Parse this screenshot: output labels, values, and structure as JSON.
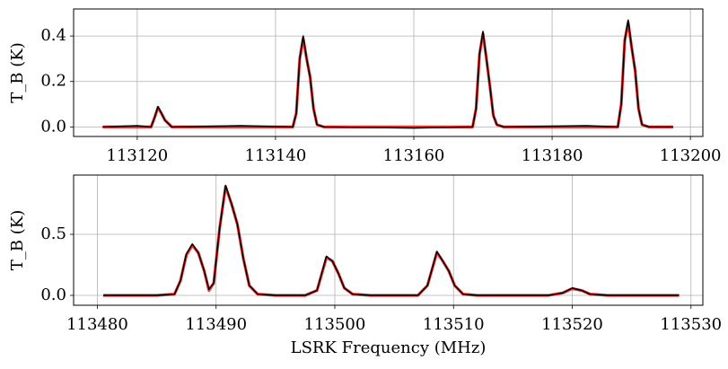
{
  "chart_data": [
    {
      "type": "line",
      "ylabel": "T_B (K)",
      "x": [
        113115,
        113120,
        113122,
        113122.5,
        113123,
        113123.5,
        113124,
        113125,
        113135,
        113142.5,
        113143,
        113143.5,
        113144,
        113144.5,
        113145,
        113145.5,
        113146,
        113147,
        113160,
        113168.5,
        113169,
        113169.5,
        113170,
        113170.5,
        113171,
        113171.5,
        113172,
        113173,
        113185,
        113189.5,
        113190,
        113190.5,
        113191,
        113191.5,
        113192,
        113192.5,
        113193,
        113194,
        113197.5
      ],
      "series": [
        {
          "color": "#ff0000",
          "values": [
            0,
            0,
            0,
            0.04,
            0.085,
            0.06,
            0.03,
            0,
            0,
            0,
            0.06,
            0.3,
            0.39,
            0.3,
            0.22,
            0.08,
            0.01,
            0,
            0,
            0,
            0.08,
            0.32,
            0.41,
            0.3,
            0.18,
            0.05,
            0.01,
            0,
            0,
            0,
            0.1,
            0.38,
            0.46,
            0.35,
            0.25,
            0.08,
            0.01,
            0,
            0
          ]
        },
        {
          "color": "#000000",
          "values": [
            0,
            0.005,
            0,
            0.04,
            0.09,
            0.06,
            0.03,
            0,
            0.005,
            0,
            0.06,
            0.3,
            0.4,
            0.3,
            0.22,
            0.08,
            0.01,
            0,
            -0.005,
            0,
            0.08,
            0.32,
            0.42,
            0.3,
            0.18,
            0.05,
            0.01,
            0,
            0.005,
            0,
            0.1,
            0.38,
            0.47,
            0.35,
            0.25,
            0.08,
            0.01,
            0,
            0
          ]
        }
      ],
      "xlim": [
        113110.8,
        113201.8
      ],
      "ylim": [
        -0.042,
        0.519
      ],
      "xticks": [
        113120,
        113140,
        113160,
        113180,
        113200
      ],
      "yticks": [
        {
          "value": 0,
          "label": "0.0"
        },
        0.2,
        0.4
      ],
      "grid": true
    },
    {
      "type": "line",
      "ylabel": "T_B (K)",
      "xlabel": "LSRK Frequency (MHz)",
      "x": [
        113480.5,
        113485,
        113486.5,
        113487,
        113487.5,
        113488,
        113488.5,
        113489,
        113489.4,
        113489.8,
        113490.3,
        113490.8,
        113491.3,
        113491.8,
        113492.3,
        113492.8,
        113493.5,
        113495,
        113497.5,
        113498.5,
        113499.3,
        113499.8,
        113500.3,
        113500.8,
        113501.5,
        113503,
        113507,
        113507.8,
        113508.6,
        113509.1,
        113509.6,
        113510.1,
        113510.8,
        113512,
        113518,
        113519.2,
        113520,
        113520.8,
        113521.5,
        113523,
        113529
      ],
      "series": [
        {
          "color": "#ff0000",
          "values": [
            0,
            0,
            0.01,
            0.12,
            0.33,
            0.41,
            0.35,
            0.2,
            0.04,
            0.1,
            0.55,
            0.89,
            0.75,
            0.58,
            0.3,
            0.08,
            0.01,
            0,
            0,
            0.04,
            0.31,
            0.28,
            0.18,
            0.06,
            0.01,
            0,
            0,
            0.08,
            0.35,
            0.28,
            0.2,
            0.08,
            0.01,
            0,
            0,
            0.02,
            0.055,
            0.04,
            0.01,
            0,
            0
          ]
        },
        {
          "color": "#000000",
          "values": [
            0,
            0,
            0.01,
            0.12,
            0.34,
            0.42,
            0.35,
            0.2,
            0.05,
            0.1,
            0.55,
            0.9,
            0.75,
            0.58,
            0.3,
            0.08,
            0.01,
            0,
            0,
            0.04,
            0.32,
            0.28,
            0.18,
            0.06,
            0.01,
            0,
            0,
            0.08,
            0.36,
            0.28,
            0.2,
            0.08,
            0.01,
            0,
            0,
            0.02,
            0.06,
            0.04,
            0.01,
            0,
            0
          ]
        }
      ],
      "xlim": [
        113478.0,
        113531.0
      ],
      "ylim": [
        -0.081,
        0.985
      ],
      "xticks": [
        113480,
        113490,
        113500,
        113510,
        113520,
        113530
      ],
      "yticks": [
        {
          "value": 0,
          "label": "0.0"
        },
        0.5
      ],
      "grid": true
    }
  ]
}
